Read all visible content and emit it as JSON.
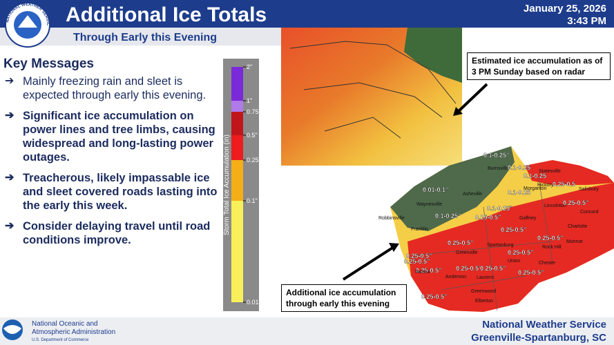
{
  "header": {
    "title": "Additional Ice Totals",
    "subtitle": "Through Early this Evening",
    "date": "January 25, 2026",
    "time": "3:43 PM",
    "logo_text": "NATIONAL WEATHER SERVICE"
  },
  "key_messages": {
    "heading": "Key Messages",
    "items": [
      "Mainly freezing rain and sleet is expected through early this evening.",
      "Significant ice accumulation on power lines and tree limbs, causing widespread and long-lasting power outages.",
      "Treacherous, likely impassable ice and sleet covered roads lasting into the early this week.",
      "Consider delaying travel until road conditions improve."
    ]
  },
  "legend": {
    "title": "Storm Total Ice Accumulation (in)",
    "labels": [
      "2\"",
      "1\"",
      "0.75\"",
      "0.5\"",
      "0.25\"",
      "0.1\"",
      "0.01\""
    ]
  },
  "callouts": {
    "radar": "Estimated ice accumulation as of 3 PM Sunday based on radar",
    "forecast": "Additional ice accumulation through early this evening"
  },
  "map_labels": [
    "0.1-0.25\"",
    "Burnsville",
    "0.1-0.25",
    "0.1-0.25",
    "0.01-0.1\"",
    "Asheville",
    "0.1-0.25",
    "Morganton",
    "Hickory",
    "0.25-0.5",
    "Statesville",
    "Salisbury",
    "Waynesville",
    "0.1-0.25\"",
    "Lincolnton",
    "0.25-0.5\"",
    "Concord",
    "Robbinsville",
    "0.1-0.25\"",
    "0.25-0.5\"",
    "Charlotte",
    "Franklin",
    "0.25-0.5\"",
    "Gaffney",
    "0.25-0.5\"",
    "Monroe",
    "0.25-0.5\"",
    "Spartanburg",
    "Rock Hill",
    "0.25-0.5\"",
    "Greenville",
    "0.25-0.5\"",
    "Union",
    "0.25-0.5\"",
    "Chester",
    "0.25-0.5\"",
    "0.25-0.5\"",
    "Toccoa",
    "Anderson",
    "0.25-0.5\"",
    "Laurens",
    "0.25-0.5\"",
    "0.25-0.5\"",
    "Greenwood",
    "Elberton"
  ],
  "footer": {
    "agency": [
      "National Oceanic and",
      "Atmospheric Administration",
      "U.S. Department of Commerce"
    ],
    "office": [
      "National Weather Service",
      "Greenville-Spartanburg, SC"
    ]
  }
}
